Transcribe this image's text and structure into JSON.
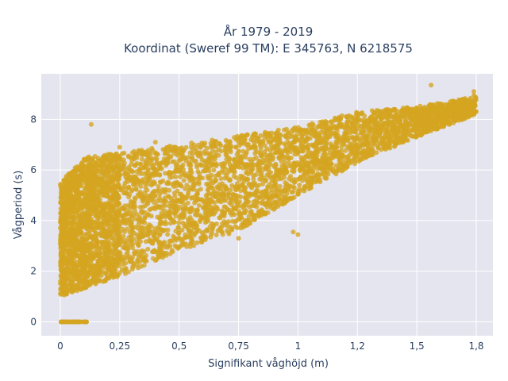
{
  "chart_data": {
    "type": "scatter",
    "title_line1": "År 1979 - 2019",
    "title_line2": "Koordinat (Sweref 99 TM): E 345763, N 6218575",
    "xlabel": "Signifikant våghöjd (m)",
    "ylabel": "Vågperiod (s)",
    "xlim": [
      -0.08,
      1.82
    ],
    "ylim": [
      -0.55,
      9.8
    ],
    "x_ticks": [
      {
        "value": 0,
        "label": "0"
      },
      {
        "value": 0.25,
        "label": "0,25"
      },
      {
        "value": 0.5,
        "label": "0,5"
      },
      {
        "value": 0.75,
        "label": "0,75"
      },
      {
        "value": 1,
        "label": "1"
      },
      {
        "value": 1.25,
        "label": "1,2"
      },
      {
        "value": 1.5,
        "label": "1,5"
      },
      {
        "value": 1.75,
        "label": "1,8"
      }
    ],
    "y_ticks": [
      {
        "value": 0,
        "label": "0"
      },
      {
        "value": 2,
        "label": "2"
      },
      {
        "value": 4,
        "label": "4"
      },
      {
        "value": 6,
        "label": "6"
      },
      {
        "value": 8,
        "label": "8"
      }
    ],
    "grid": true,
    "colors": {
      "marker": "#D4A520",
      "plot_bg": "#E5E5F0",
      "grid": "#ffffff",
      "text": "#2a3f5f"
    },
    "band": {
      "description": "dense cloud of points",
      "x_range": [
        0,
        1.75
      ],
      "upper_edge": [
        [
          0,
          5.5
        ],
        [
          0.1,
          6.5
        ],
        [
          0.5,
          7.0
        ],
        [
          1.0,
          7.7
        ],
        [
          1.25,
          8.3
        ],
        [
          1.5,
          8.5
        ],
        [
          1.75,
          8.9
        ]
      ],
      "lower_edge": [
        [
          0,
          1.0
        ],
        [
          0.25,
          1.8
        ],
        [
          0.5,
          2.8
        ],
        [
          0.75,
          3.6
        ],
        [
          1.0,
          5.0
        ],
        [
          1.25,
          6.3
        ],
        [
          1.5,
          7.3
        ],
        [
          1.75,
          8.2
        ]
      ]
    },
    "zero_period_points": {
      "x_range": [
        0,
        0.12
      ],
      "y": 0
    },
    "outliers": [
      {
        "x": 0.13,
        "y": 7.8
      },
      {
        "x": 0.98,
        "y": 3.55
      },
      {
        "x": 1.0,
        "y": 3.45
      },
      {
        "x": 1.56,
        "y": 9.35
      },
      {
        "x": 1.74,
        "y": 9.1
      },
      {
        "x": 1.74,
        "y": 8.95
      },
      {
        "x": 0.6,
        "y": 3.4
      },
      {
        "x": 0.75,
        "y": 3.3
      },
      {
        "x": 0.25,
        "y": 6.9
      },
      {
        "x": 0.4,
        "y": 7.1
      }
    ]
  }
}
